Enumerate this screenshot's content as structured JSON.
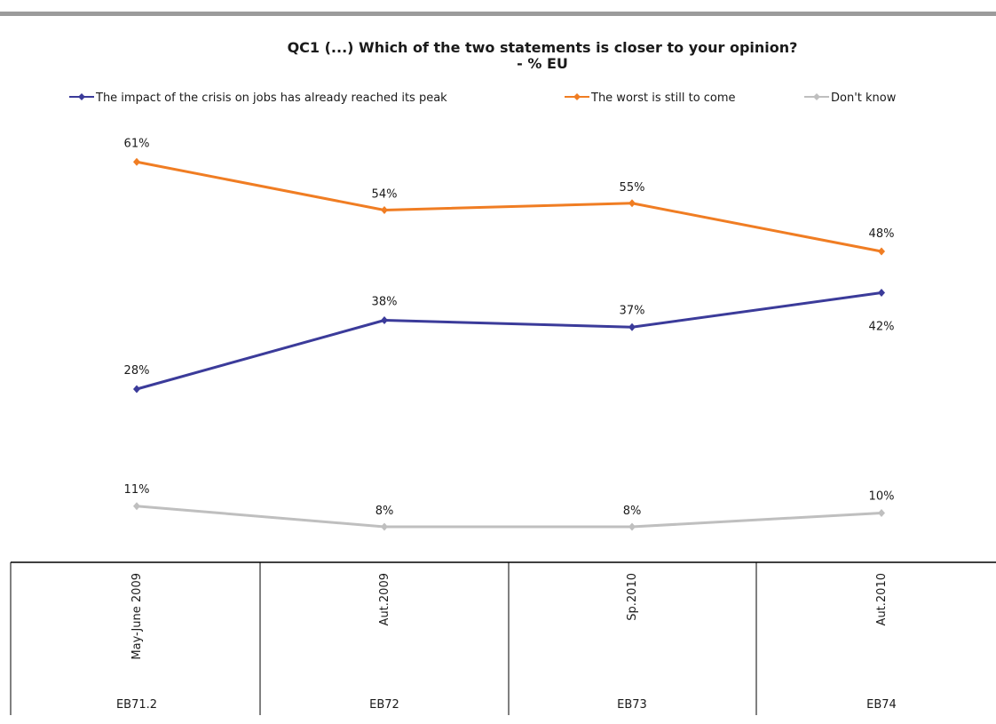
{
  "chart_data": {
    "type": "line",
    "title": "QC1 (...) Which of the two statements is closer to your opinion?",
    "subtitle": "- % EU",
    "categories": [
      "May-June 2009",
      "Aut.2009",
      "Sp.2010",
      "Aut.2010"
    ],
    "category_codes": [
      "EB71.2",
      "EB72",
      "EB73",
      "EB74"
    ],
    "series": [
      {
        "name": "The impact of the crisis on jobs has already reached its peak",
        "values": [
          28,
          38,
          37,
          42
        ],
        "labels": [
          "28%",
          "38%",
          "37%",
          "42%"
        ],
        "color": "#3b3b9a"
      },
      {
        "name": "The worst is still to come",
        "values": [
          61,
          54,
          55,
          48
        ],
        "labels": [
          "61%",
          "54%",
          "55%",
          "48%"
        ],
        "color": "#f07d23"
      },
      {
        "name": "Don't know",
        "values": [
          11,
          8,
          8,
          10
        ],
        "labels": [
          "11%",
          "8%",
          "8%",
          "10%"
        ],
        "color": "#bfbfbf"
      }
    ],
    "ylim": [
      0,
      80
    ],
    "grid": false,
    "legend_position": "top"
  }
}
